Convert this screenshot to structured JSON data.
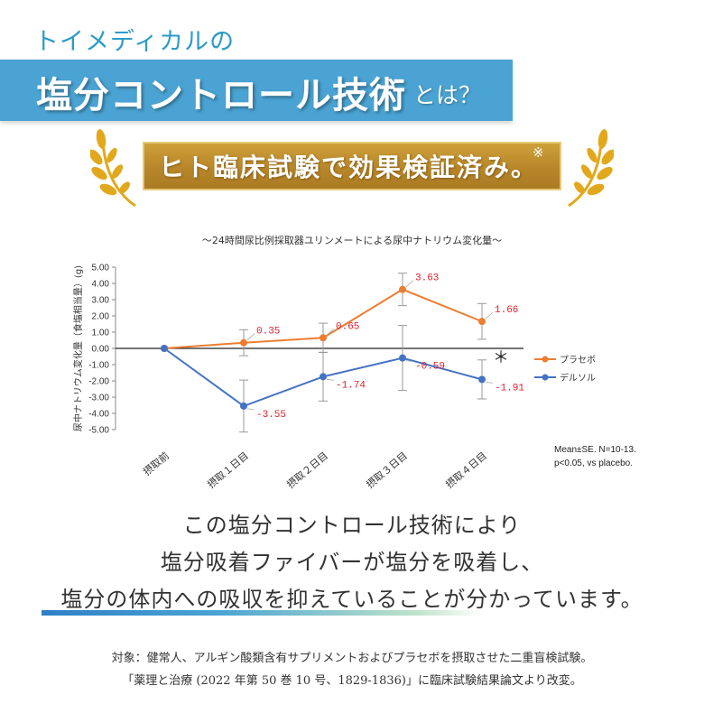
{
  "header": {
    "brand": "トイメディカルの",
    "title": "塩分コントロール技術",
    "title_suffix": "とは？",
    "badge": "ヒト臨床試験で効果検証済み。",
    "badge_mark": "※"
  },
  "chart_data": {
    "type": "line",
    "title": "～24時間尿比例採取器ユリンメートによる尿中ナトリウム変化量～",
    "ylabel": "尿中ナトリウム変化量（食塩相当量）(g)",
    "xlabel": "",
    "ylim": [
      -5.0,
      5.0
    ],
    "ytick_labels": [
      "5.00",
      "4.00",
      "3.00",
      "2.00",
      "1.00",
      "0.00",
      "-1.00",
      "-2.00",
      "-3.00",
      "-4.00",
      "-5.00"
    ],
    "categories": [
      "摂取前",
      "摂取１日目",
      "摂取２日目",
      "摂取３日目",
      "摂取４日目"
    ],
    "series": [
      {
        "name": "プラセボ",
        "color": "#ed7d31",
        "values": [
          0,
          0.35,
          0.65,
          3.63,
          1.66
        ],
        "error": [
          0,
          0.8,
          0.9,
          1.0,
          1.1
        ],
        "labels": [
          "",
          "0.35",
          "0.65",
          "3.63",
          "1.66"
        ]
      },
      {
        "name": "デルソル",
        "color": "#4472c4",
        "values": [
          0,
          -3.55,
          -1.74,
          -0.59,
          -1.91
        ],
        "error": [
          0,
          1.6,
          1.5,
          2.0,
          1.2
        ],
        "labels": [
          "",
          "-3.55",
          "-1.74",
          "-0.59",
          "-1.91"
        ]
      }
    ],
    "significance_mark": "＊",
    "legend_position": "right",
    "note_line1": "Mean±SE.   N=10-13.",
    "note_line2": "p<0.05, vs placebo."
  },
  "message": {
    "line1": "この塩分コントロール技術により",
    "line2": "塩分吸着ファイバーが塩分を吸着し、",
    "line3": "塩分の体内への吸収を抑えていることが分かっています。"
  },
  "footer": {
    "line1": "対象：健常人、アルギン酸類含有サプリメントおよびプラセボを摂取させた二重盲検試験。",
    "line2": "「薬理と治療 (2022 年第 50 巻 10 号、1829-1836)」に臨床試験結果論文より改変。"
  },
  "colors": {
    "accent": "#4aa3d3",
    "gold": "#b8862a",
    "placebo": "#ed7d31",
    "delsol": "#4472c4",
    "label_red": "#e0202c"
  }
}
